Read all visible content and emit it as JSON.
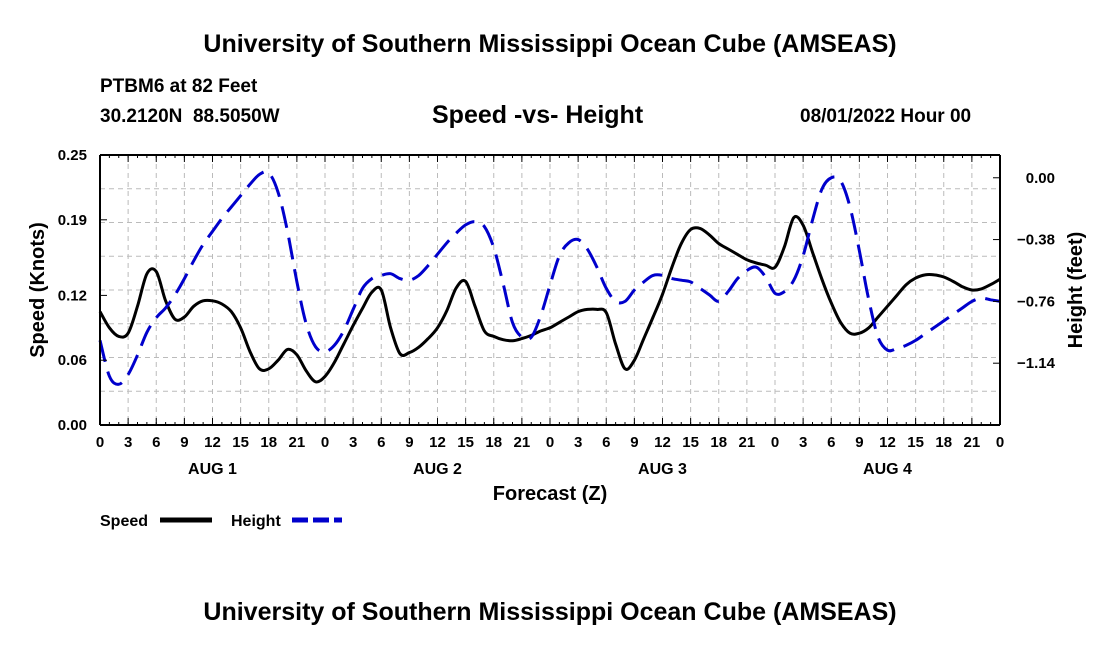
{
  "header": {
    "title": "University of Southern Mississippi Ocean Cube (AMSEAS)",
    "station": "PTBM6 at 82 Feet",
    "coords": "30.2120N  88.5050W",
    "chart_title": "Speed -vs- Height",
    "run_time": "08/01/2022 Hour 00"
  },
  "footer": {
    "title": "University of Southern Mississippi Ocean Cube (AMSEAS)"
  },
  "chart_data": {
    "type": "line",
    "title": "Speed -vs- Height",
    "xlabel": "Forecast (Z)",
    "ylabel": "Speed (Knots)",
    "y2label": "Height (feet)",
    "x_range": [
      0,
      96
    ],
    "ylim": [
      0,
      0.25
    ],
    "y2lim": [
      -1.52,
      0.14
    ],
    "grid": true,
    "legend_position": "bottom-left",
    "x_tick_labels": [
      "0",
      "3",
      "6",
      "9",
      "12",
      "15",
      "18",
      "21",
      "0",
      "3",
      "6",
      "9",
      "12",
      "15",
      "18",
      "21",
      "0",
      "3",
      "6",
      "9",
      "12",
      "15",
      "18",
      "21",
      "0",
      "3",
      "6",
      "9",
      "12",
      "15",
      "18",
      "21",
      "0"
    ],
    "day_labels": [
      "AUG 1",
      "AUG 2",
      "AUG 3",
      "AUG 4"
    ],
    "y_ticks": [
      0.0,
      0.06,
      0.12,
      0.19,
      0.25
    ],
    "y_tick_labels": [
      "0.00",
      "0.06",
      "0.12",
      "0.19",
      "0.25"
    ],
    "y2_ticks": [
      0.0,
      -0.38,
      -0.76,
      -1.14
    ],
    "y2_tick_labels": [
      "0.00",
      "−0.38",
      "−0.76",
      "−1.14"
    ],
    "series": [
      {
        "name": "Speed",
        "axis": "left",
        "color": "#000000",
        "dash": "solid",
        "x": [
          0,
          1,
          2,
          3,
          4,
          5,
          6,
          7,
          8,
          9,
          10,
          11,
          12,
          13,
          14,
          15,
          16,
          17,
          18,
          19,
          20,
          21,
          22,
          23,
          24,
          25,
          26,
          27,
          28,
          29,
          30,
          31,
          32,
          33,
          34,
          35,
          36,
          37,
          38,
          39,
          40,
          41,
          42,
          43,
          44,
          45,
          46,
          47,
          48,
          49,
          50,
          51,
          52,
          53,
          54,
          55,
          56,
          57,
          58,
          59,
          60,
          61,
          62,
          63,
          64,
          65,
          66,
          67,
          68,
          69,
          70,
          71,
          72,
          73,
          74,
          75,
          76,
          77,
          78,
          79,
          80,
          81,
          82,
          83,
          84,
          85,
          86,
          87,
          88,
          89,
          90,
          91,
          92,
          93,
          94,
          95,
          96
        ],
        "values": [
          0.105,
          0.09,
          0.082,
          0.085,
          0.11,
          0.14,
          0.142,
          0.115,
          0.098,
          0.1,
          0.11,
          0.115,
          0.115,
          0.112,
          0.105,
          0.09,
          0.068,
          0.052,
          0.052,
          0.06,
          0.07,
          0.065,
          0.05,
          0.04,
          0.045,
          0.058,
          0.075,
          0.092,
          0.108,
          0.123,
          0.125,
          0.09,
          0.066,
          0.067,
          0.072,
          0.08,
          0.09,
          0.106,
          0.127,
          0.133,
          0.11,
          0.087,
          0.082,
          0.079,
          0.078,
          0.08,
          0.083,
          0.087,
          0.09,
          0.095,
          0.1,
          0.105,
          0.107,
          0.107,
          0.104,
          0.075,
          0.052,
          0.06,
          0.08,
          0.1,
          0.121,
          0.146,
          0.168,
          0.181,
          0.182,
          0.176,
          0.168,
          0.163,
          0.158,
          0.153,
          0.15,
          0.148,
          0.146,
          0.165,
          0.192,
          0.185,
          0.16,
          0.135,
          0.113,
          0.095,
          0.085,
          0.085,
          0.09,
          0.1,
          0.11,
          0.12,
          0.13,
          0.136,
          0.139,
          0.139,
          0.137,
          0.133,
          0.128,
          0.125,
          0.126,
          0.13,
          0.135
        ]
      },
      {
        "name": "Height",
        "axis": "right",
        "color": "#0000cc",
        "dash": "dashed",
        "x": [
          0,
          1,
          2,
          3,
          4,
          5,
          6,
          7,
          8,
          9,
          10,
          11,
          12,
          13,
          14,
          15,
          16,
          17,
          18,
          19,
          20,
          21,
          22,
          23,
          24,
          25,
          26,
          27,
          28,
          29,
          30,
          31,
          32,
          33,
          34,
          35,
          36,
          37,
          38,
          39,
          40,
          41,
          42,
          43,
          44,
          45,
          46,
          47,
          48,
          49,
          50,
          51,
          52,
          53,
          54,
          55,
          56,
          57,
          58,
          59,
          60,
          61,
          62,
          63,
          64,
          65,
          66,
          67,
          68,
          69,
          70,
          71,
          72,
          73,
          74,
          75,
          76,
          77,
          78,
          79,
          80,
          81,
          82,
          83,
          84,
          85,
          86,
          87,
          88,
          89,
          90,
          91,
          92,
          93,
          94,
          95,
          96
        ],
        "values": [
          -1.0,
          -1.22,
          -1.27,
          -1.21,
          -1.09,
          -0.95,
          -0.86,
          -0.8,
          -0.72,
          -0.62,
          -0.51,
          -0.41,
          -0.33,
          -0.25,
          -0.18,
          -0.11,
          -0.04,
          0.02,
          0.03,
          -0.09,
          -0.33,
          -0.64,
          -0.9,
          -1.04,
          -1.07,
          -1.03,
          -0.94,
          -0.81,
          -0.68,
          -0.62,
          -0.6,
          -0.59,
          -0.62,
          -0.63,
          -0.6,
          -0.54,
          -0.47,
          -0.4,
          -0.34,
          -0.29,
          -0.27,
          -0.3,
          -0.43,
          -0.65,
          -0.89,
          -0.98,
          -0.98,
          -0.85,
          -0.66,
          -0.48,
          -0.4,
          -0.38,
          -0.44,
          -0.55,
          -0.68,
          -0.76,
          -0.76,
          -0.69,
          -0.64,
          -0.6,
          -0.6,
          -0.62,
          -0.63,
          -0.64,
          -0.68,
          -0.72,
          -0.76,
          -0.7,
          -0.62,
          -0.57,
          -0.55,
          -0.61,
          -0.71,
          -0.7,
          -0.63,
          -0.48,
          -0.26,
          -0.07,
          0.0,
          -0.02,
          -0.18,
          -0.45,
          -0.75,
          -0.98,
          -1.06,
          -1.05,
          -1.03,
          -1.0,
          -0.96,
          -0.92,
          -0.88,
          -0.84,
          -0.8,
          -0.76,
          -0.74,
          -0.75,
          -0.76
        ]
      }
    ]
  }
}
